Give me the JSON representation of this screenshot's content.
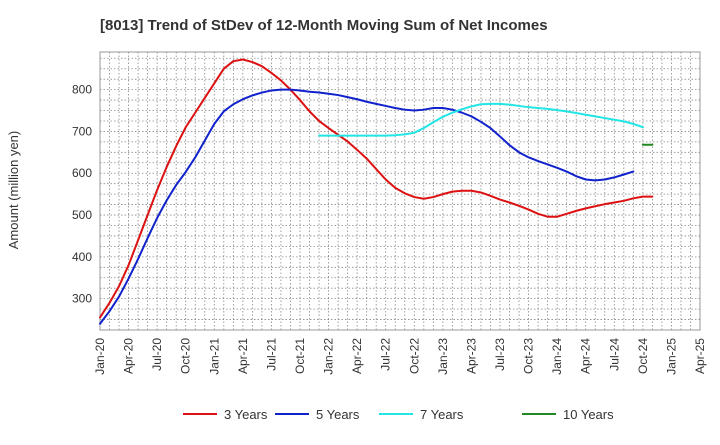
{
  "chart_data": {
    "type": "line",
    "title": "[8013]  Trend of StDev of 12-Month Moving Sum of Net Incomes",
    "xlabel": "",
    "ylabel": "Amount (million yen)",
    "x_ticks": [
      "Jan-20",
      "Apr-20",
      "Jul-20",
      "Oct-20",
      "Jan-21",
      "Apr-21",
      "Jul-21",
      "Oct-21",
      "Jan-22",
      "Apr-22",
      "Jul-22",
      "Oct-22",
      "Jan-23",
      "Apr-23",
      "Jul-23",
      "Oct-23",
      "Jan-24",
      "Apr-24",
      "Jul-24",
      "Oct-24",
      "Jan-25",
      "Apr-25"
    ],
    "y_ticks": [
      300,
      400,
      500,
      600,
      700,
      800
    ],
    "ylim": [
      225,
      890
    ],
    "grid": true,
    "legend_position": "bottom",
    "series": [
      {
        "name": "3 Years",
        "color": "#dd1111",
        "points": [
          [
            "Jan-20",
            255
          ],
          [
            "Feb-20",
            290
          ],
          [
            "Mar-20",
            330
          ],
          [
            "Apr-20",
            380
          ],
          [
            "May-20",
            440
          ],
          [
            "Jun-20",
            500
          ],
          [
            "Jul-20",
            560
          ],
          [
            "Aug-20",
            615
          ],
          [
            "Sep-20",
            665
          ],
          [
            "Oct-20",
            710
          ],
          [
            "Nov-20",
            745
          ],
          [
            "Dec-20",
            780
          ],
          [
            "Jan-21",
            815
          ],
          [
            "Feb-21",
            850
          ],
          [
            "Mar-21",
            868
          ],
          [
            "Apr-21",
            872
          ],
          [
            "May-21",
            866
          ],
          [
            "Jun-21",
            856
          ],
          [
            "Jul-21",
            840
          ],
          [
            "Aug-21",
            822
          ],
          [
            "Sep-21",
            800
          ],
          [
            "Oct-21",
            775
          ],
          [
            "Nov-21",
            748
          ],
          [
            "Dec-21",
            725
          ],
          [
            "Jan-22",
            708
          ],
          [
            "Feb-22",
            692
          ],
          [
            "Mar-22",
            676
          ],
          [
            "Apr-22",
            656
          ],
          [
            "May-22",
            635
          ],
          [
            "Jun-22",
            610
          ],
          [
            "Jul-22",
            585
          ],
          [
            "Aug-22",
            565
          ],
          [
            "Sep-22",
            552
          ],
          [
            "Oct-22",
            543
          ],
          [
            "Nov-22",
            539
          ],
          [
            "Dec-22",
            543
          ],
          [
            "Jan-23",
            550
          ],
          [
            "Feb-23",
            556
          ],
          [
            "Mar-23",
            558
          ],
          [
            "Apr-23",
            558
          ],
          [
            "May-23",
            554
          ],
          [
            "Jun-23",
            546
          ],
          [
            "Jul-23",
            537
          ],
          [
            "Aug-23",
            530
          ],
          [
            "Sep-23",
            522
          ],
          [
            "Oct-23",
            513
          ],
          [
            "Nov-23",
            503
          ],
          [
            "Dec-23",
            496
          ],
          [
            "Jan-24",
            496
          ],
          [
            "Feb-24",
            503
          ],
          [
            "Mar-24",
            510
          ],
          [
            "Apr-24",
            516
          ],
          [
            "May-24",
            521
          ],
          [
            "Jun-24",
            526
          ],
          [
            "Jul-24",
            530
          ],
          [
            "Aug-24",
            534
          ],
          [
            "Sep-24",
            540
          ],
          [
            "Oct-24",
            544
          ],
          [
            "Nov-24",
            544
          ]
        ]
      },
      {
        "name": "5 Years",
        "color": "#1122cc",
        "points": [
          [
            "Jan-20",
            240
          ],
          [
            "Feb-20",
            270
          ],
          [
            "Mar-20",
            305
          ],
          [
            "Apr-20",
            348
          ],
          [
            "May-20",
            395
          ],
          [
            "Jun-20",
            445
          ],
          [
            "Jul-20",
            493
          ],
          [
            "Aug-20",
            535
          ],
          [
            "Sep-20",
            572
          ],
          [
            "Oct-20",
            603
          ],
          [
            "Nov-20",
            638
          ],
          [
            "Dec-20",
            678
          ],
          [
            "Jan-21",
            718
          ],
          [
            "Feb-21",
            748
          ],
          [
            "Mar-21",
            765
          ],
          [
            "Apr-21",
            777
          ],
          [
            "May-21",
            786
          ],
          [
            "Jun-21",
            793
          ],
          [
            "Jul-21",
            798
          ],
          [
            "Aug-21",
            800
          ],
          [
            "Sep-21",
            800
          ],
          [
            "Oct-21",
            798
          ],
          [
            "Nov-21",
            795
          ],
          [
            "Dec-21",
            793
          ],
          [
            "Jan-22",
            790
          ],
          [
            "Feb-22",
            787
          ],
          [
            "Mar-22",
            782
          ],
          [
            "Apr-22",
            777
          ],
          [
            "May-22",
            771
          ],
          [
            "Jun-22",
            766
          ],
          [
            "Jul-22",
            761
          ],
          [
            "Aug-22",
            756
          ],
          [
            "Sep-22",
            752
          ],
          [
            "Oct-22",
            750
          ],
          [
            "Nov-22",
            752
          ],
          [
            "Dec-22",
            756
          ],
          [
            "Jan-23",
            756
          ],
          [
            "Feb-23",
            752
          ],
          [
            "Mar-23",
            745
          ],
          [
            "Apr-23",
            736
          ],
          [
            "May-23",
            723
          ],
          [
            "Jun-23",
            708
          ],
          [
            "Jul-23",
            688
          ],
          [
            "Aug-23",
            667
          ],
          [
            "Sep-23",
            650
          ],
          [
            "Oct-23",
            638
          ],
          [
            "Nov-23",
            629
          ],
          [
            "Dec-23",
            621
          ],
          [
            "Jan-24",
            613
          ],
          [
            "Feb-24",
            604
          ],
          [
            "Mar-24",
            593
          ],
          [
            "Apr-24",
            585
          ],
          [
            "May-24",
            583
          ],
          [
            "Jun-24",
            585
          ],
          [
            "Jul-24",
            590
          ],
          [
            "Aug-24",
            597
          ],
          [
            "Sep-24",
            604
          ]
        ]
      },
      {
        "name": "7 Years",
        "color": "#22e5e5",
        "points": [
          [
            "Dec-21",
            690
          ],
          [
            "Jan-22",
            690
          ],
          [
            "Feb-22",
            690
          ],
          [
            "Mar-22",
            690
          ],
          [
            "Apr-22",
            690
          ],
          [
            "May-22",
            690
          ],
          [
            "Jun-22",
            690
          ],
          [
            "Jul-22",
            690
          ],
          [
            "Aug-22",
            691
          ],
          [
            "Sep-22",
            693
          ],
          [
            "Oct-22",
            697
          ],
          [
            "Nov-22",
            708
          ],
          [
            "Dec-22",
            722
          ],
          [
            "Jan-23",
            735
          ],
          [
            "Feb-23",
            745
          ],
          [
            "Mar-23",
            753
          ],
          [
            "Apr-23",
            760
          ],
          [
            "May-23",
            765
          ],
          [
            "Jun-23",
            766
          ],
          [
            "Jul-23",
            766
          ],
          [
            "Aug-23",
            764
          ],
          [
            "Sep-23",
            761
          ],
          [
            "Oct-23",
            758
          ],
          [
            "Nov-23",
            756
          ],
          [
            "Dec-23",
            754
          ],
          [
            "Jan-24",
            751
          ],
          [
            "Feb-24",
            748
          ],
          [
            "Mar-24",
            744
          ],
          [
            "Apr-24",
            740
          ],
          [
            "May-24",
            736
          ],
          [
            "Jun-24",
            732
          ],
          [
            "Jul-24",
            728
          ],
          [
            "Aug-24",
            724
          ],
          [
            "Sep-24",
            718
          ],
          [
            "Oct-24",
            710
          ]
        ]
      },
      {
        "name": "10 Years",
        "color": "#228822",
        "points": [
          [
            "Oct-24",
            668
          ],
          [
            "Nov-24",
            668
          ]
        ]
      }
    ]
  }
}
